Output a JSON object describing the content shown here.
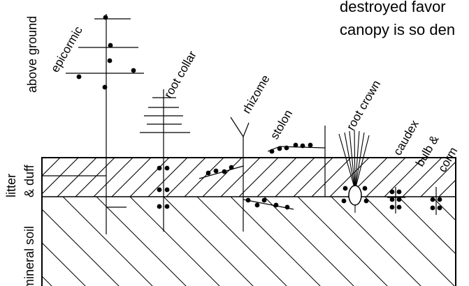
{
  "background_text": {
    "line1": "destroyed favor",
    "line2": "canopy is so den"
  },
  "layers": {
    "above_ground": "above ground",
    "litter": "litter",
    "duff": "& duff",
    "mineral_soil": "mineral soil"
  },
  "structures": {
    "epicormic": "epicormic",
    "root_collar": "root collar",
    "rhizome": "rhizome",
    "stolon": "stolon",
    "root_crown": "root crown",
    "caudex": "caudex",
    "bulb": "bulb &",
    "corm": "corm"
  },
  "colors": {
    "ink": "#000000",
    "background": "#ffffff"
  }
}
